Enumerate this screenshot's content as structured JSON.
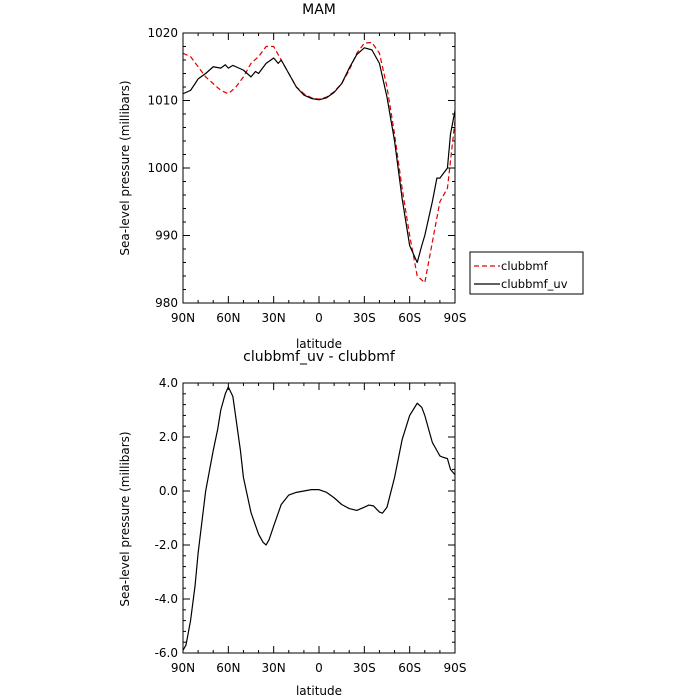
{
  "chart_data": [
    {
      "type": "line",
      "title": "MAM",
      "xlabel": "latitude",
      "ylabel": "Sea-level pressure (millibars)",
      "xlim": [
        90,
        -90
      ],
      "ylim": [
        980,
        1020
      ],
      "xticks": [
        90,
        60,
        30,
        0,
        -30,
        -60,
        -90
      ],
      "xticklabels": [
        "90N",
        "60N",
        "30N",
        "0",
        "30S",
        "60S",
        "90S"
      ],
      "yticks": [
        980,
        990,
        1000,
        1010,
        1020
      ],
      "yticklabels": [
        "980",
        "990",
        "1000",
        "1010",
        "1020"
      ],
      "legend_position": "outside-right",
      "series": [
        {
          "name": "clubbmf",
          "color": "#e00000",
          "dash": "dashed",
          "x": [
            90,
            85,
            80,
            75,
            70,
            65,
            60,
            55,
            50,
            45,
            40,
            35,
            30,
            25,
            20,
            15,
            10,
            5,
            0,
            -5,
            -10,
            -15,
            -20,
            -25,
            -30,
            -35,
            -40,
            -45,
            -50,
            -55,
            -60,
            -65,
            -70,
            -75,
            -80,
            -85,
            -90
          ],
          "values": [
            1017,
            1016.5,
            1015,
            1013.5,
            1012.5,
            1011.5,
            1011,
            1012,
            1013.5,
            1015.5,
            1016.5,
            1018,
            1018,
            1016,
            1014,
            1012,
            1011,
            1010.4,
            1010.2,
            1010.5,
            1011.3,
            1012.5,
            1014.5,
            1017,
            1018.5,
            1018.6,
            1017,
            1012,
            1005,
            997,
            990,
            984,
            983,
            989,
            995,
            997,
            1007
          ]
        },
        {
          "name": "clubbmf_uv",
          "color": "#000000",
          "dash": "solid",
          "x": [
            90,
            85,
            82,
            80,
            75,
            70,
            65,
            62,
            60,
            57,
            55,
            50,
            45,
            42,
            40,
            35,
            30,
            27,
            25,
            20,
            15,
            10,
            5,
            0,
            -5,
            -10,
            -15,
            -20,
            -25,
            -30,
            -35,
            -40,
            -45,
            -50,
            -55,
            -60,
            -65,
            -68,
            -70,
            -75,
            -78,
            -80,
            -85,
            -87,
            -90
          ],
          "values": [
            1011,
            1011.5,
            1012.5,
            1013.2,
            1014,
            1015,
            1014.8,
            1015.3,
            1014.8,
            1015.2,
            1015,
            1014.5,
            1013.5,
            1014.3,
            1014,
            1015.5,
            1016.3,
            1015.5,
            1016,
            1014,
            1012,
            1010.8,
            1010.3,
            1010.1,
            1010.4,
            1011.2,
            1012.5,
            1014.8,
            1016.8,
            1017.8,
            1017.5,
            1015.5,
            1010.5,
            1004,
            995.5,
            988.5,
            986,
            988.5,
            990,
            995,
            998.5,
            998.5,
            1000,
            1005,
            1008.5
          ]
        }
      ]
    },
    {
      "type": "line",
      "title": "clubbmf_uv - clubbmf",
      "xlabel": "latitude",
      "ylabel": "Sea-level pressure (millibars)",
      "xlim": [
        90,
        -90
      ],
      "ylim": [
        -6,
        4
      ],
      "xticks": [
        90,
        60,
        30,
        0,
        -30,
        -60,
        -90
      ],
      "xticklabels": [
        "90N",
        "60N",
        "30N",
        "0",
        "30S",
        "60S",
        "90S"
      ],
      "yticks": [
        -6,
        -4,
        -2,
        0,
        2,
        4
      ],
      "yticklabels": [
        "-6.0",
        "-4.0",
        "-2.0",
        "0.0",
        "2.0",
        "4.0"
      ],
      "series": [
        {
          "color": "#000000",
          "dash": "solid",
          "x": [
            90,
            88,
            85,
            82,
            80,
            75,
            70,
            67,
            65,
            62,
            60,
            57,
            55,
            52,
            50,
            45,
            40,
            37,
            35,
            33,
            30,
            25,
            20,
            15,
            10,
            5,
            0,
            -5,
            -10,
            -15,
            -20,
            -25,
            -30,
            -33,
            -36,
            -40,
            -42,
            -45,
            -50,
            -55,
            -60,
            -65,
            -68,
            -70,
            -73,
            -75,
            -78,
            -80,
            -82,
            -85,
            -87,
            -90
          ],
          "values": [
            -5.9,
            -5.7,
            -4.8,
            -3.5,
            -2.3,
            0,
            1.5,
            2.3,
            3.0,
            3.6,
            3.85,
            3.5,
            2.7,
            1.5,
            0.5,
            -0.8,
            -1.6,
            -1.9,
            -2.0,
            -1.8,
            -1.3,
            -0.5,
            -0.15,
            -0.05,
            0,
            0.05,
            0.05,
            -0.05,
            -0.25,
            -0.5,
            -0.65,
            -0.72,
            -0.6,
            -0.52,
            -0.55,
            -0.78,
            -0.82,
            -0.6,
            0.5,
            1.9,
            2.8,
            3.25,
            3.1,
            2.8,
            2.2,
            1.8,
            1.5,
            1.3,
            1.25,
            1.2,
            0.8,
            0.6
          ]
        }
      ]
    }
  ]
}
